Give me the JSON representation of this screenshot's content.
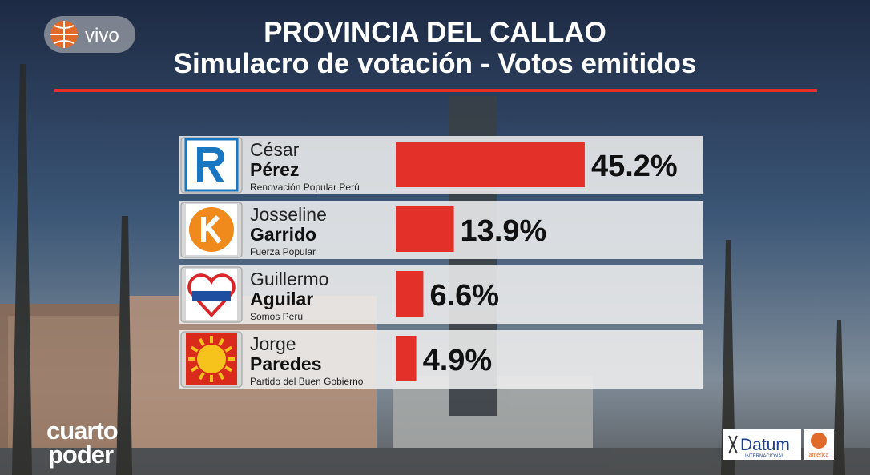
{
  "chart_data": {
    "type": "bar",
    "orientation": "horizontal",
    "title": "PROVINCIA DEL CALLAO",
    "subtitle": "Simulacro de votación - Votos emitidos",
    "first_names": [
      "César",
      "Josseline",
      "Guillermo",
      "Jorge"
    ],
    "last_names": [
      "Pérez",
      "Garrido",
      "Aguilar",
      "Paredes"
    ],
    "parties": [
      "Renovación Popular Perú",
      "Fuerza Popular",
      "Somos Perú",
      "Partido del Buen Gobierno"
    ],
    "values": [
      45.2,
      13.9,
      6.6,
      4.9
    ],
    "value_labels": [
      "45.2%",
      "13.9%",
      "6.6%",
      "4.9%"
    ],
    "color": "#e3312a"
  },
  "overlay": {
    "live": "vivo",
    "program_line1": "cuarto",
    "program_line2": "poder",
    "pollster": "Datum",
    "pollster_sub": "INTERNACIONAL",
    "network": "américa"
  }
}
